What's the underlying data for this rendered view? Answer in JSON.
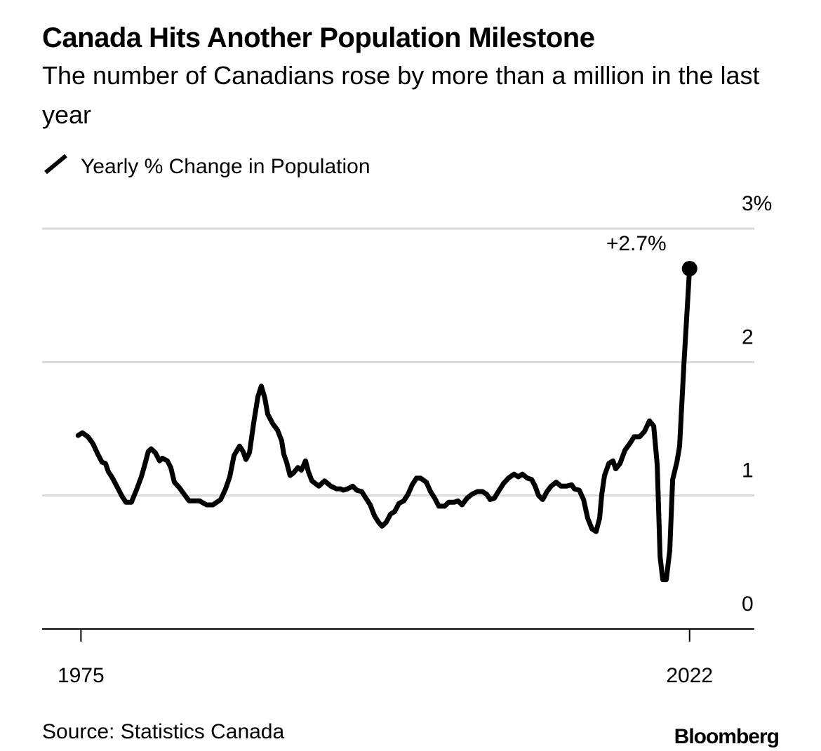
{
  "chart_data": {
    "type": "line",
    "title": "Canada Hits Another Population Milestone",
    "subtitle": "The number of Canadians rose by more than a million in the last year",
    "x": [
      1974.78,
      1975.11,
      1975.54,
      1975.92,
      1976.3,
      1976.63,
      1976.9,
      1977.11,
      1977.44,
      1977.82,
      1978.2,
      1978.47,
      1978.9,
      1979.28,
      1979.66,
      1979.93,
      1980.2,
      1980.42,
      1980.75,
      1981.07,
      1981.29,
      1981.67,
      1981.94,
      1982.21,
      1982.59,
      1982.97,
      1983.35,
      1984.16,
      1984.7,
      1985.19,
      1985.79,
      1986.17,
      1986.49,
      1986.82,
      1987.25,
      1987.52,
      1987.74,
      1988.01,
      1988.33,
      1988.66,
      1988.93,
      1989.2,
      1989.42,
      1989.8,
      1990.18,
      1990.5,
      1990.66,
      1990.88,
      1991.15,
      1991.42,
      1991.75,
      1992.02,
      1992.34,
      1992.56,
      1992.83,
      1993.37,
      1993.81,
      1994.3,
      1994.73,
      1995.05,
      1995.27,
      1995.6,
      1995.98,
      1996.3,
      1996.68,
      1997.01,
      1997.34,
      1997.66,
      1997.98,
      1998.25,
      1998.58,
      1998.9,
      1999.23,
      1999.55,
      1999.93,
      2000.26,
      2000.58,
      2000.91,
      2001.23,
      2001.67,
      2001.99,
      2002.32,
      2002.64,
      2003.08,
      2003.4,
      2003.83,
      2004.11,
      2004.43,
      2004.81,
      2005.19,
      2005.62,
      2006.0,
      2006.33,
      2006.6,
      2006.92,
      2007.3,
      2007.63,
      2008.01,
      2008.44,
      2008.77,
      2009.09,
      2009.47,
      2009.8,
      2010.07,
      2010.34,
      2010.66,
      2010.99,
      2011.31,
      2011.69,
      2012.07,
      2012.51,
      2012.89,
      2013.1,
      2013.48,
      2013.81,
      2014.13,
      2014.46,
      2014.78,
      2015.05,
      2015.22,
      2015.43,
      2015.76,
      2016.08,
      2016.3,
      2016.63,
      2017.01,
      2017.39,
      2017.71,
      2018.14,
      2018.52,
      2018.9,
      2019.23,
      2019.5,
      2019.72,
      2019.93,
      2020.2,
      2020.47,
      2020.69,
      2021.02,
      2021.23,
      2021.56,
      2022.0
    ],
    "series": [
      {
        "name": "Yearly % Change in Population",
        "color": "#000000",
        "values": [
          1.45,
          1.47,
          1.44,
          1.39,
          1.31,
          1.25,
          1.24,
          1.18,
          1.13,
          1.06,
          0.99,
          0.95,
          0.95,
          1.04,
          1.14,
          1.23,
          1.33,
          1.35,
          1.32,
          1.26,
          1.28,
          1.26,
          1.21,
          1.1,
          1.06,
          1.01,
          0.96,
          0.96,
          0.93,
          0.93,
          0.97,
          1.05,
          1.14,
          1.3,
          1.37,
          1.33,
          1.27,
          1.32,
          1.54,
          1.74,
          1.82,
          1.73,
          1.61,
          1.54,
          1.49,
          1.41,
          1.31,
          1.25,
          1.15,
          1.17,
          1.21,
          1.19,
          1.26,
          1.18,
          1.11,
          1.07,
          1.11,
          1.07,
          1.05,
          1.05,
          1.04,
          1.05,
          1.07,
          1.04,
          1.03,
          0.98,
          0.93,
          0.85,
          0.8,
          0.77,
          0.8,
          0.86,
          0.88,
          0.94,
          0.96,
          1.01,
          1.08,
          1.13,
          1.13,
          1.1,
          1.03,
          0.98,
          0.92,
          0.92,
          0.95,
          0.95,
          0.96,
          0.93,
          0.98,
          1.01,
          1.03,
          1.03,
          1.01,
          0.97,
          0.98,
          1.04,
          1.09,
          1.13,
          1.16,
          1.14,
          1.16,
          1.13,
          1.12,
          1.07,
          1.0,
          0.97,
          1.03,
          1.07,
          1.1,
          1.07,
          1.07,
          1.08,
          1.05,
          1.04,
          0.97,
          0.83,
          0.75,
          0.73,
          0.83,
          1.01,
          1.15,
          1.24,
          1.26,
          1.2,
          1.24,
          1.34,
          1.39,
          1.44,
          1.44,
          1.48,
          1.56,
          1.52,
          1.23,
          0.54,
          0.37,
          0.37,
          0.59,
          1.12,
          1.25,
          1.37,
          1.98,
          2.7
        ]
      }
    ],
    "annotation": "+2.7%",
    "xlim": [
      1972,
      2027
    ],
    "xticks": [
      1975,
      2022
    ],
    "ylim": [
      0,
      3
    ],
    "yticks": [
      0,
      1,
      2,
      {
        "value": 3,
        "label": "3%"
      }
    ],
    "grid": true,
    "source": "Source: Statistics Canada",
    "brand": "Bloomberg"
  }
}
